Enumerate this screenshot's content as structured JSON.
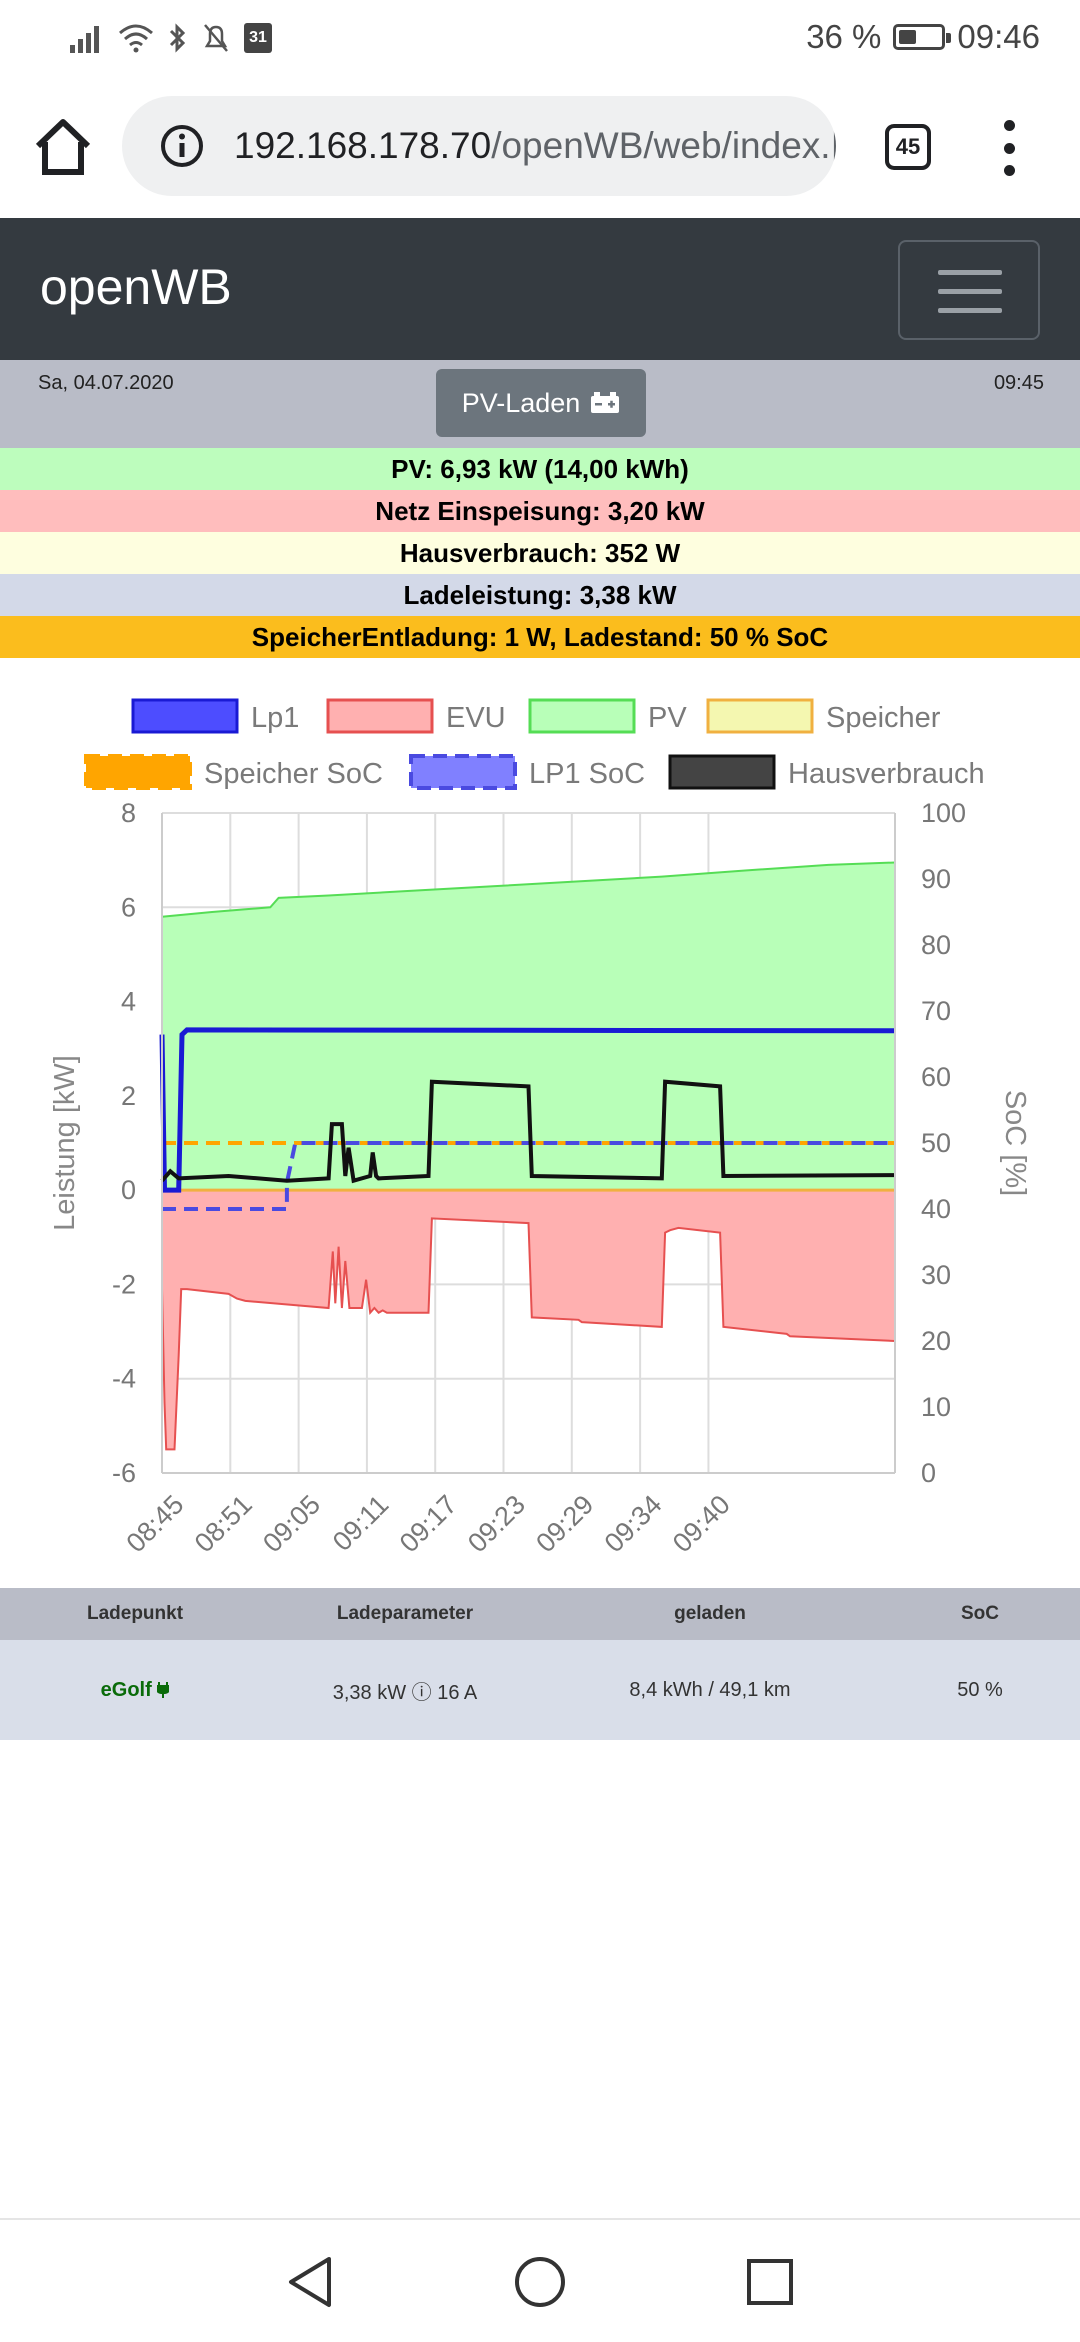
{
  "status_bar": {
    "battery": "36 %",
    "clock": "09:46",
    "calendar_day": "31",
    "battery_level": 0.36
  },
  "browser": {
    "url_host": "192.168.178.70",
    "url_path": "/openWB/web/index.|",
    "tab_count": "45"
  },
  "navbar": {
    "brand": "openWB"
  },
  "info": {
    "date": "Sa, 04.07.2020",
    "time": "09:45",
    "mode_label": "PV-Laden"
  },
  "bands": {
    "pv": "PV: 6,93 kW (14,00 kWh)",
    "evu": "Netz Einspeisung: 3,20 kW",
    "haus": "Hausverbrauch: 352 W",
    "lade": "Ladeleistung: 3,38 kW",
    "speicher": "SpeicherEntladung: 1 W, Ladestand: 50 % SoC"
  },
  "chart_data": {
    "type": "line",
    "ylabel_left": "Leistung [kW]",
    "ylabel_right": "SoC [%]",
    "ylim_left": [
      -6,
      8
    ],
    "ylim_right": [
      0,
      100
    ],
    "yticks_left": [
      "8",
      "6",
      "4",
      "2",
      "0",
      "-2",
      "-4",
      "-6"
    ],
    "yticks_right": [
      "100",
      "90",
      "80",
      "70",
      "60",
      "50",
      "40",
      "30",
      "20",
      "10",
      "0"
    ],
    "xticks": [
      "08:45",
      "08:51",
      "09:05",
      "09:11",
      "09:17",
      "09:23",
      "09:29",
      "09:34",
      "09:40"
    ],
    "legend": [
      {
        "name": "Lp1",
        "fill": "#4d4dff",
        "stroke": "#1a1ad4",
        "dash": false
      },
      {
        "name": "EVU",
        "fill": "#ffb0b0",
        "stroke": "#e65050",
        "dash": false
      },
      {
        "name": "PV",
        "fill": "#b8ffb8",
        "stroke": "#55dd55",
        "dash": false
      },
      {
        "name": "Speicher",
        "fill": "#f4f7b0",
        "stroke": "#f0b040",
        "dash": false
      },
      {
        "name": "Speicher SoC",
        "fill": "#ffa500",
        "stroke": "#ffa500",
        "dash": true
      },
      {
        "name": "LP1 SoC",
        "fill": "#8080ff",
        "stroke": "#4a4ae0",
        "dash": true
      },
      {
        "name": "Hausverbrauch",
        "fill": "#444444",
        "stroke": "#111111",
        "dash": false
      }
    ],
    "series": [
      {
        "name": "PV",
        "color": "#55dd55",
        "x": [
          0,
          6,
          13,
          14,
          20,
          30,
          40,
          50,
          60,
          70,
          80,
          88
        ],
        "y": [
          5.8,
          5.9,
          6.0,
          6.2,
          6.25,
          6.35,
          6.45,
          6.55,
          6.65,
          6.78,
          6.9,
          6.95
        ]
      },
      {
        "name": "EVU",
        "color": "#e65050",
        "x": [
          0,
          0.3,
          0.5,
          1.5,
          2.0,
          2.3,
          3,
          8,
          9,
          10,
          20,
          20.5,
          20.8,
          21.2,
          21.6,
          22,
          22.5,
          24,
          24.5,
          25,
          25.5,
          26,
          26.5,
          27,
          32,
          32.4,
          44,
          44.4,
          50,
          50.4,
          60,
          60.4,
          61,
          62,
          67,
          67.4,
          75,
          75.4,
          88
        ],
        "y": [
          -2.1,
          -4.5,
          -5.5,
          -5.5,
          -3.5,
          -2.1,
          -2.1,
          -2.2,
          -2.3,
          -2.35,
          -2.5,
          -1.3,
          -2.4,
          -1.2,
          -2.5,
          -1.5,
          -2.5,
          -2.5,
          -1.9,
          -2.6,
          -2.5,
          -2.6,
          -2.55,
          -2.6,
          -2.6,
          -0.6,
          -0.7,
          -2.7,
          -2.75,
          -2.8,
          -2.9,
          -0.9,
          -0.85,
          -0.8,
          -0.9,
          -2.9,
          -3.05,
          -3.1,
          -3.2
        ]
      },
      {
        "name": "Lp1",
        "color": "#1a1ad4",
        "x": [
          0,
          0.3,
          2,
          2.4,
          3,
          88
        ],
        "y": [
          3.3,
          0.0,
          0.0,
          3.3,
          3.4,
          3.38
        ]
      },
      {
        "name": "Hausverbrauch",
        "color": "#111111",
        "x": [
          0,
          1,
          2,
          8,
          15,
          20,
          20.4,
          21.6,
          22,
          22.4,
          23,
          25,
          25.3,
          25.7,
          26,
          32,
          32.4,
          44,
          44.4,
          60,
          60.4,
          67,
          67.4,
          88
        ],
        "y": [
          0.2,
          0.4,
          0.25,
          0.3,
          0.2,
          0.25,
          1.4,
          1.4,
          0.3,
          0.9,
          0.2,
          0.3,
          0.8,
          0.3,
          0.25,
          0.3,
          2.3,
          2.2,
          0.3,
          0.25,
          2.3,
          2.2,
          0.3,
          0.32
        ]
      },
      {
        "name": "Speicher",
        "color": "#f0b040",
        "x": [
          0,
          88
        ],
        "y": [
          0.0,
          0.0
        ]
      },
      {
        "name": "Speicher SoC",
        "color": "#ffa500",
        "dash": true,
        "x": [
          0,
          88
        ],
        "y_soc": [
          50,
          50
        ]
      },
      {
        "name": "LP1 SoC",
        "color": "#4a4ae0",
        "dash": true,
        "x": [
          0,
          15,
          15,
          16,
          88
        ],
        "y_soc": [
          40,
          40,
          44,
          50,
          50
        ]
      }
    ],
    "x_range": [
      0,
      88
    ]
  },
  "table": {
    "headers": [
      "Ladepunkt",
      "Ladeparameter",
      "geladen",
      "SoC"
    ],
    "rows": [
      [
        "eGolf",
        "3,38 kW ⓘ 16 A",
        "8,4 kWh / 49,1 km",
        "50 %"
      ]
    ]
  }
}
